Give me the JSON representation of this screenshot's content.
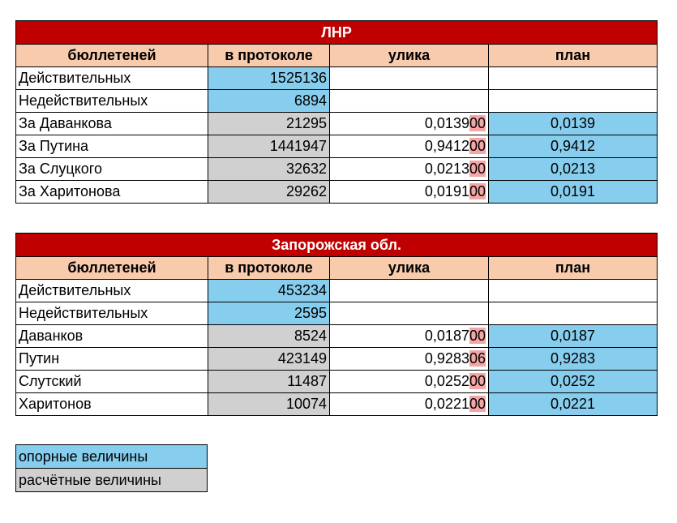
{
  "tables": [
    {
      "title": "ЛНР",
      "headers": [
        "бюллетеней",
        "в протоколе",
        "улика",
        "план"
      ],
      "rows": [
        {
          "label": "Действительных",
          "protocol": "1525136"
        },
        {
          "label": "Недействительных",
          "protocol": "6894"
        },
        {
          "label": "За Даванкова",
          "protocol": "21295",
          "evidence_main": "0,0139",
          "evidence_tail": "00",
          "plan": "0,0139"
        },
        {
          "label": "За Путина",
          "protocol": "1441947",
          "evidence_main": "0,9412",
          "evidence_tail": "00",
          "plan": "0,9412"
        },
        {
          "label": "За Слуцкого",
          "protocol": "32632",
          "evidence_main": "0,0213",
          "evidence_tail": "00",
          "plan": "0,0213"
        },
        {
          "label": "За Харитонова",
          "protocol": "29262",
          "evidence_main": "0,0191",
          "evidence_tail": "00",
          "plan": "0,0191"
        }
      ]
    },
    {
      "title": "Запорожская обл.",
      "headers": [
        "бюллетеней",
        "в протоколе",
        "улика",
        "план"
      ],
      "rows": [
        {
          "label": "Действительных",
          "protocol": "453234"
        },
        {
          "label": "Недействительных",
          "protocol": "2595"
        },
        {
          "label": "Даванков",
          "protocol": "8524",
          "evidence_main": "0,0187",
          "evidence_tail": "00",
          "plan": "0,0187"
        },
        {
          "label": "Путин",
          "protocol": "423149",
          "evidence_main": "0,9283",
          "evidence_tail": "06",
          "plan": "0,9283"
        },
        {
          "label": "Слутский",
          "protocol": "11487",
          "evidence_main": "0,0252",
          "evidence_tail": "00",
          "plan": "0,0252"
        },
        {
          "label": "Харитонов",
          "protocol": "10074",
          "evidence_main": "0,0221",
          "evidence_tail": "00",
          "plan": "0,0221"
        }
      ]
    }
  ],
  "legend": {
    "reference": "опорные величины",
    "calculated": "расчётные величины"
  },
  "colors": {
    "title_bg": "#c00000",
    "header_bg": "#f8cbad",
    "reference_bg": "#87cdee",
    "calculated_bg": "#d0d0d0",
    "highlight": "#f4a6a6"
  }
}
